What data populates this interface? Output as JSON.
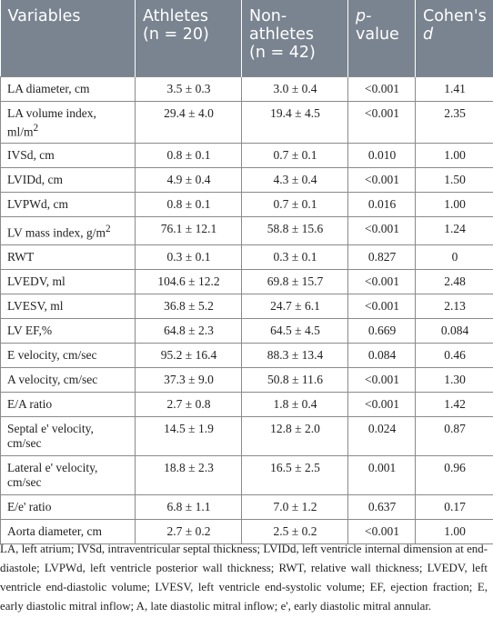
{
  "headers": {
    "variables": "Variables",
    "athletes": "Athletes",
    "athletes_n": "(n = 20)",
    "nonathletes_a": "Non-",
    "nonathletes_b": "athletes",
    "nonathletes_n": "(n = 42)",
    "p_a": "p-",
    "p_b": "value",
    "cohen_a": "Cohen's",
    "cohen_b": "d"
  },
  "rows": [
    {
      "var": "LA diameter, cm",
      "ath": "3.5 ± 0.3",
      "non": "3.0 ± 0.4",
      "p": "<0.001",
      "d": "1.41"
    },
    {
      "var": "LA volume index, ml/m",
      "sup": "2",
      "ath": "29.4 ± 4.0",
      "non": "19.4 ± 4.5",
      "p": "<0.001",
      "d": "2.35"
    },
    {
      "var": "IVSd, cm",
      "ath": "0.8 ± 0.1",
      "non": "0.7 ± 0.1",
      "p": "0.010",
      "d": "1.00"
    },
    {
      "var": "LVIDd, cm",
      "ath": "4.9 ± 0.4",
      "non": "4.3 ± 0.4",
      "p": "<0.001",
      "d": "1.50"
    },
    {
      "var": "LVPWd, cm",
      "ath": "0.8 ± 0.1",
      "non": "0.7 ± 0.1",
      "p": "0.016",
      "d": "1.00"
    },
    {
      "var": "LV mass index, g/m",
      "sup": "2",
      "ath": "76.1 ± 12.1",
      "non": "58.8 ± 15.6",
      "p": "<0.001",
      "d": "1.24"
    },
    {
      "var": "RWT",
      "ath": "0.3 ± 0.1",
      "non": "0.3 ± 0.1",
      "p": "0.827",
      "d": "0"
    },
    {
      "var": "LVEDV, ml",
      "ath": "104.6 ± 12.2",
      "non": "69.8 ± 15.7",
      "p": "<0.001",
      "d": "2.48"
    },
    {
      "var": "LVESV, ml",
      "ath": "36.8 ± 5.2",
      "non": "24.7 ± 6.1",
      "p": "<0.001",
      "d": "2.13"
    },
    {
      "var": "LV EF,%",
      "ath": "64.8 ± 2.3",
      "non": "64.5 ± 4.5",
      "p": "0.669",
      "d": "0.084"
    },
    {
      "var": "E velocity, cm/sec",
      "ath": "95.2 ± 16.4",
      "non": "88.3 ± 13.4",
      "p": "0.084",
      "d": "0.46"
    },
    {
      "var": "A velocity, cm/sec",
      "ath": "37.3 ± 9.0",
      "non": "50.8 ± 11.6",
      "p": "<0.001",
      "d": "1.30"
    },
    {
      "var": "E/A ratio",
      "ath": "2.7 ± 0.8",
      "non": "1.8 ± 0.4",
      "p": "<0.001",
      "d": "1.42"
    },
    {
      "var": "Septal e' velocity, cm/sec",
      "ath": "14.5 ± 1.9",
      "non": "12.8 ± 2.0",
      "p": "0.024",
      "d": "0.87"
    },
    {
      "var": "Lateral e' velocity, cm/sec",
      "ath": "18.8 ± 2.3",
      "non": "16.5 ± 2.5",
      "p": "0.001",
      "d": "0.96"
    },
    {
      "var": "E/e' ratio",
      "ath": "6.8 ± 1.1",
      "non": "7.0 ± 1.2",
      "p": "0.637",
      "d": "0.17"
    },
    {
      "var": "Aorta diameter, cm",
      "ath": "2.7 ± 0.2",
      "non": "2.5 ± 0.2",
      "p": "<0.001",
      "d": "1.00"
    }
  ],
  "footnote": "LA, left atrium; IVSd, intraventricular septal thickness; LVIDd, left ventricle internal dimension at end-diastole; LVPWd, left ventricle posterior wall thickness; RWT, relative wall thickness; LVEDV, left ventricle end-diastolic volume; LVESV, left ventricle end-systolic volume; EF, ejection fraction; E, early diastolic mitral inflow; A, late diastolic mitral inflow; e', early diastolic mitral annular."
}
